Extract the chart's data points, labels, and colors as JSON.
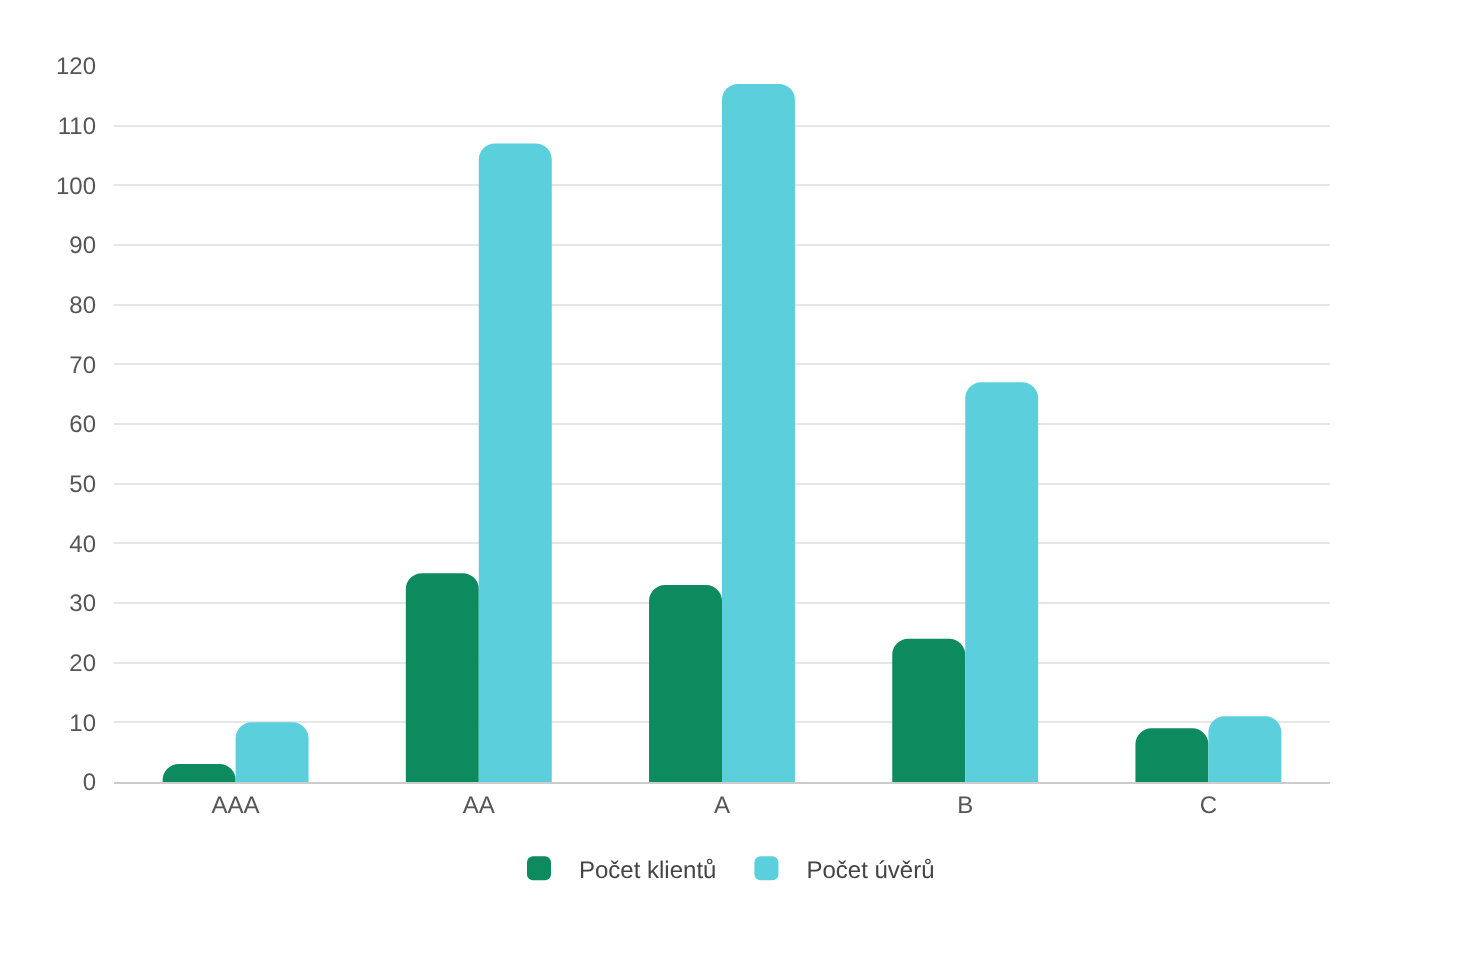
{
  "chart_data": {
    "type": "bar",
    "categories": [
      "AAA",
      "AA",
      "A",
      "B",
      "C"
    ],
    "series": [
      {
        "name": "Počet klientů",
        "color": "#0e8a5f",
        "values": [
          3,
          35,
          33,
          24,
          9
        ]
      },
      {
        "name": "Počet úvěrů",
        "color": "#5ccfdc",
        "values": [
          10,
          107,
          117,
          67,
          11
        ]
      }
    ],
    "ylim": [
      0,
      120
    ],
    "yticks": [
      0,
      10,
      20,
      30,
      40,
      50,
      60,
      70,
      80,
      90,
      100,
      110,
      120
    ],
    "grid": "y",
    "legend": "bottom"
  }
}
